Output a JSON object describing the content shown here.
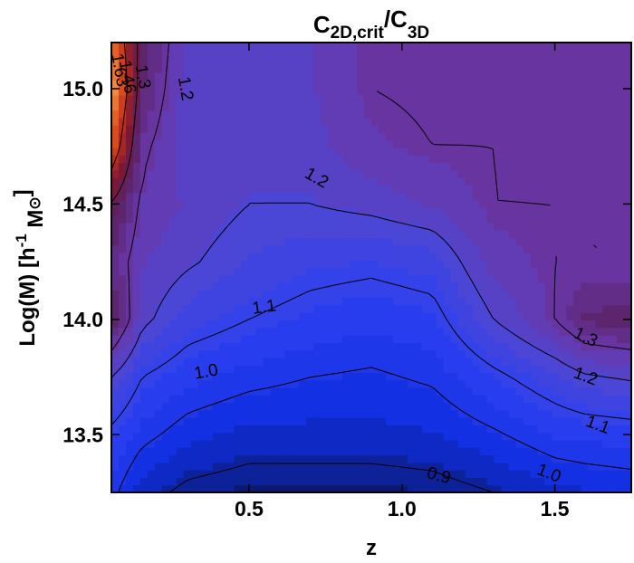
{
  "chart_data": {
    "type": "heatmap",
    "title": {
      "main": "C",
      "sub1": "2D,crit",
      "sep": "/C",
      "sub2": "3D"
    },
    "xlabel": "z",
    "ylabel": {
      "main": "Log(M)  [h",
      "sup": "-1",
      "tail": " M",
      "sun": "⊙",
      "close": "]"
    },
    "xlim": [
      0.05,
      1.75
    ],
    "ylim": [
      13.25,
      15.2
    ],
    "x_ticks": [
      {
        "value": 0.5,
        "label": "0.5"
      },
      {
        "value": 1.0,
        "label": "1.0"
      },
      {
        "value": 1.5,
        "label": "1.5"
      }
    ],
    "y_ticks": [
      {
        "value": 13.5,
        "label": "13.5"
      },
      {
        "value": 14.0,
        "label": "14.0"
      },
      {
        "value": 14.5,
        "label": "14.5"
      },
      {
        "value": 15.0,
        "label": "15.0"
      }
    ],
    "colormap": [
      "#0c1a6e",
      "#0f2ee0",
      "#2c40f0",
      "#4b46d6",
      "#6a38a8",
      "#5a2266",
      "#7a1838",
      "#b42a1c",
      "#e0501e",
      "#f08a40"
    ],
    "vmin": 0.85,
    "vmax": 1.85,
    "grid": {
      "x": [
        0.05,
        0.15,
        0.3,
        0.5,
        0.7,
        0.9,
        1.1,
        1.3,
        1.5,
        1.6,
        1.75
      ],
      "y": [
        13.25,
        13.5,
        13.75,
        14.0,
        14.25,
        14.5,
        14.75,
        15.0,
        15.2
      ],
      "z": [
        [
          1.02,
          0.93,
          0.88,
          0.86,
          0.86,
          0.86,
          0.87,
          0.9,
          0.94,
          0.95,
          0.96
        ],
        [
          1.08,
          1.02,
          0.97,
          0.94,
          0.94,
          0.94,
          0.95,
          0.99,
          1.04,
          1.05,
          1.06
        ],
        [
          1.2,
          1.1,
          1.05,
          1.02,
          1.0,
          0.99,
          1.01,
          1.08,
          1.15,
          1.19,
          1.21
        ],
        [
          1.42,
          1.22,
          1.14,
          1.1,
          1.07,
          1.05,
          1.07,
          1.2,
          1.3,
          1.38,
          1.4
        ],
        [
          1.36,
          1.25,
          1.21,
          1.16,
          1.13,
          1.12,
          1.14,
          1.27,
          1.3,
          1.3,
          1.3
        ],
        [
          1.45,
          1.28,
          1.24,
          1.2,
          1.2,
          1.22,
          1.25,
          1.3,
          1.3,
          1.3,
          1.3
        ],
        [
          1.75,
          1.32,
          1.22,
          1.22,
          1.23,
          1.28,
          1.3,
          1.3,
          1.31,
          1.32,
          1.32
        ],
        [
          1.9,
          1.38,
          1.22,
          1.22,
          1.24,
          1.3,
          1.31,
          1.31,
          1.32,
          1.32,
          1.32
        ],
        [
          1.8,
          1.4,
          1.23,
          1.22,
          1.24,
          1.3,
          1.31,
          1.31,
          1.32,
          1.32,
          1.32
        ]
      ]
    },
    "contour_levels": [
      0.9,
      1.0,
      1.1,
      1.2,
      1.3,
      1.46,
      1.63
    ],
    "contour_labels": [
      {
        "text": "0.9",
        "x": 1.12,
        "y": 13.32,
        "angle": 15
      },
      {
        "text": "1.0",
        "x": 1.48,
        "y": 13.33,
        "angle": 22
      },
      {
        "text": "1.0",
        "x": 0.36,
        "y": 13.77,
        "angle": -10
      },
      {
        "text": "1.1",
        "x": 0.55,
        "y": 14.05,
        "angle": -8
      },
      {
        "text": "1.1",
        "x": 1.64,
        "y": 13.54,
        "angle": 20
      },
      {
        "text": "1.2",
        "x": 0.72,
        "y": 14.61,
        "angle": 30
      },
      {
        "text": "1.2",
        "x": 1.6,
        "y": 13.75,
        "angle": 20
      },
      {
        "text": "1.2",
        "x": 0.29,
        "y": 15.0,
        "angle": 80
      },
      {
        "text": "1.3",
        "x": 1.6,
        "y": 13.92,
        "angle": 25
      },
      {
        "text": "1.3",
        "x": 0.15,
        "y": 15.05,
        "angle": 80
      },
      {
        "text": "1.46",
        "x": 0.1,
        "y": 15.05,
        "angle": 80
      },
      {
        "text": "1.63",
        "x": 0.075,
        "y": 15.08,
        "angle": 80
      }
    ]
  }
}
